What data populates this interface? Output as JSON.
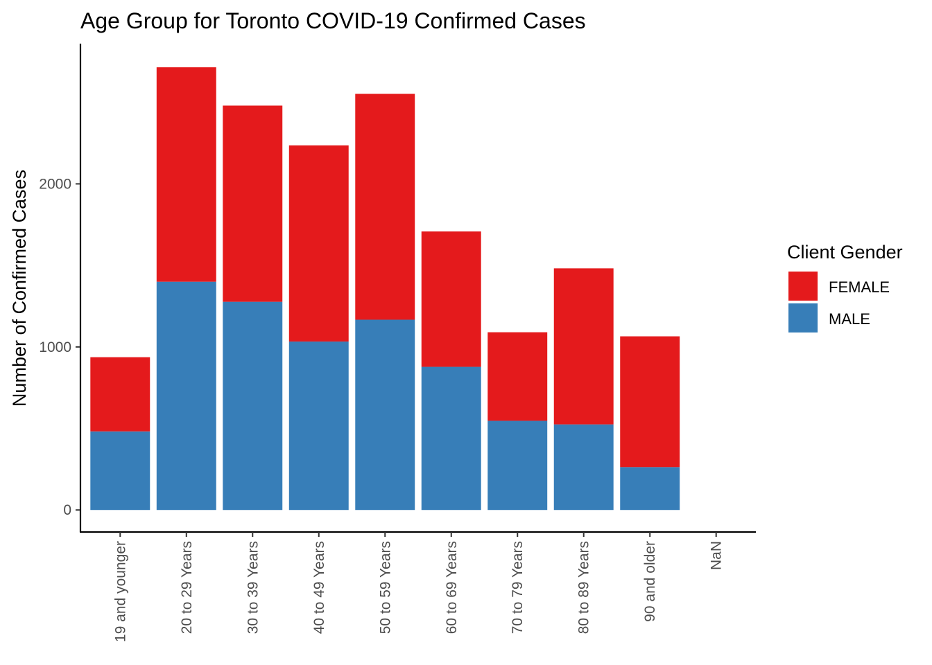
{
  "chart_data": {
    "type": "bar",
    "stacked": true,
    "title": "Age Group for Toronto COVID-19 Confirmed Cases",
    "xlabel": "",
    "ylabel": "Number of Confirmed Cases",
    "categories": [
      "19 and younger",
      "20 to 29 Years",
      "30 to 39 Years",
      "40 to 49 Years",
      "50 to 59 Years",
      "60 to 69 Years",
      "70 to 79 Years",
      "80 to 89 Years",
      "90 and older",
      "NaN"
    ],
    "series": [
      {
        "name": "MALE",
        "color": "#377EB8",
        "values": [
          482,
          1400,
          1277,
          1033,
          1167,
          878,
          547,
          525,
          263,
          0
        ]
      },
      {
        "name": "FEMALE",
        "color": "#E41A1C",
        "values": [
          455,
          1315,
          1203,
          1203,
          1385,
          830,
          543,
          957,
          802,
          0
        ]
      }
    ],
    "yticks": [
      0,
      1000,
      2000
    ],
    "ylim": [
      -135,
      2860
    ],
    "grid": false,
    "legend": {
      "title": "Client Gender",
      "position": "right",
      "entries": [
        "FEMALE",
        "MALE"
      ]
    }
  }
}
